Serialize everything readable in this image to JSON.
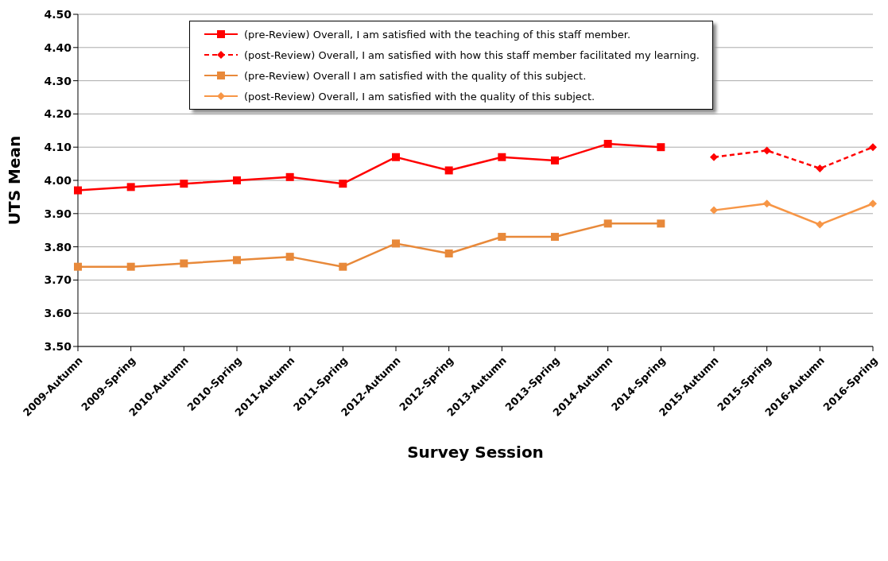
{
  "chart_data": {
    "type": "line",
    "xlabel": "Survey Session",
    "ylabel": "UTS Mean",
    "categories": [
      "2009-Autumn",
      "2009-Spring",
      "2010-Autumn",
      "2010-Spring",
      "2011-Autumn",
      "2011-Spring",
      "2012-Autumn",
      "2012-Spring",
      "2013-Autumn",
      "2013-Spring",
      "2014-Autumn",
      "2014-Spring",
      "2015-Autumn",
      "2015-Spring",
      "2016-Autumn",
      "2016-Spring"
    ],
    "series": [
      {
        "name": "(pre-Review) Overall, I am satisfied with the teaching of this staff member.",
        "color": "#ff0000",
        "marker": "square",
        "line_style": "solid",
        "values": [
          3.97,
          3.98,
          3.99,
          4.0,
          4.01,
          3.99,
          4.07,
          4.03,
          4.07,
          4.06,
          4.11,
          4.1,
          null,
          null,
          null,
          null
        ]
      },
      {
        "name": "(post-Review) Overall, I am satisfied with how this staff member facilitated my learning.",
        "color": "#ff0000",
        "marker": "diamond",
        "line_style": "dashed",
        "values": [
          null,
          null,
          null,
          null,
          null,
          null,
          null,
          null,
          null,
          null,
          null,
          null,
          4.07,
          4.09,
          4.036,
          4.1
        ]
      },
      {
        "name": "(pre-Review) Overall I am satisfied with the quality of this subject.",
        "color": "#e8893a",
        "marker": "square",
        "line_style": "solid",
        "values": [
          3.74,
          3.74,
          3.75,
          3.76,
          3.77,
          3.74,
          3.81,
          3.78,
          3.83,
          3.83,
          3.87,
          3.87,
          null,
          null,
          null,
          null
        ]
      },
      {
        "name": "(post-Review) Overall, I am satisfied with the quality of this subject.",
        "color": "#f79646",
        "marker": "diamond",
        "line_style": "solid",
        "values": [
          null,
          null,
          null,
          null,
          null,
          null,
          null,
          null,
          null,
          null,
          null,
          null,
          3.91,
          3.93,
          3.867,
          3.93
        ]
      }
    ],
    "ylim": [
      3.5,
      4.5
    ],
    "yticks": [
      {
        "value": 3.5,
        "label": "3.50"
      },
      {
        "value": 3.6,
        "label": "3.60"
      },
      {
        "value": 3.7,
        "label": "3.70"
      },
      {
        "value": 3.8,
        "label": "3.80"
      },
      {
        "value": 3.9,
        "label": "3.90"
      },
      {
        "value": 4.0,
        "label": "4.00"
      },
      {
        "value": 4.1,
        "label": "4.10"
      },
      {
        "value": 4.2,
        "label": "4.20"
      },
      {
        "value": 4.3,
        "label": "4.30"
      },
      {
        "value": 4.4,
        "label": "4.40"
      },
      {
        "value": 4.5,
        "label": "4.50"
      }
    ],
    "grid": "y",
    "legend": "top"
  }
}
